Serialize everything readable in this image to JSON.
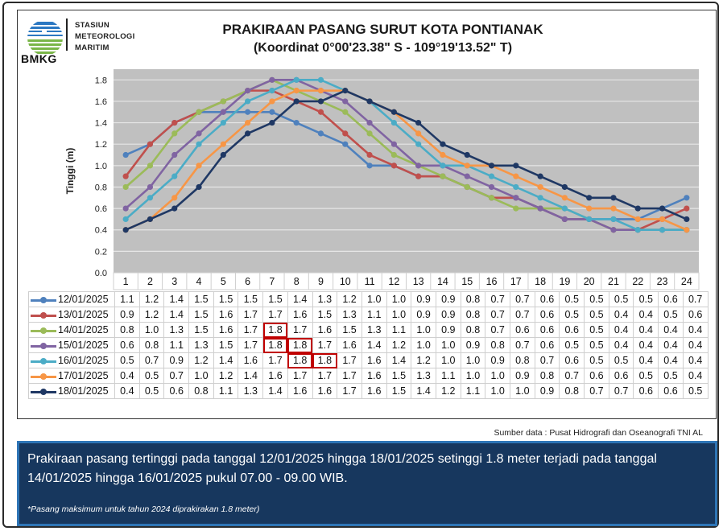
{
  "header": {
    "logo_text": "BMKG",
    "station_lines": [
      "STASIUN",
      "METEOROLOGI",
      "MARITIM"
    ],
    "title": "PRAKIRAAN PASANG SURUT KOTA PONTIANAK",
    "subtitle": "(Koordinat 0°00'23.38\" S - 109°19'13.52\" T)"
  },
  "source": "Sumber data : Pusat Hidrografi dan Oseanografi TNI AL",
  "note": {
    "main": "Prakiraan pasang tertinggi pada tanggal 12/01/2025 hingga 18/01/2025 setinggi 1.8 meter terjadi pada tanggal 14/01/2025 hingga 16/01/2025 pukul 07.00 - 09.00 WIB.",
    "footnote": "*Pasang maksimum untuk tahun 2024 diprakirakan 1.8 meter)"
  },
  "chart_data": {
    "type": "line",
    "title": "PRAKIRAAN PASANG SURUT KOTA PONTIANAK",
    "subtitle": "(Koordinat 0°00'23.38\" S - 109°19'13.52\" T)",
    "xlabel": "",
    "ylabel": "Tinggi (m)",
    "ylim": [
      0,
      1.9
    ],
    "yticks": [
      0.0,
      0.2,
      0.4,
      0.6,
      0.8,
      1.0,
      1.2,
      1.4,
      1.6,
      1.8
    ],
    "grid": true,
    "legend_position": "data-table",
    "x": [
      1,
      2,
      3,
      4,
      5,
      6,
      7,
      8,
      9,
      10,
      11,
      12,
      13,
      14,
      15,
      16,
      17,
      18,
      19,
      20,
      21,
      22,
      23,
      24
    ],
    "series": [
      {
        "name": "12/01/2025",
        "color": "#4f81bd",
        "values": [
          1.1,
          1.2,
          1.4,
          1.5,
          1.5,
          1.5,
          1.5,
          1.4,
          1.3,
          1.2,
          1.0,
          1.0,
          0.9,
          0.9,
          0.8,
          0.7,
          0.7,
          0.6,
          0.5,
          0.5,
          0.5,
          0.5,
          0.6,
          0.7
        ]
      },
      {
        "name": "13/01/2025",
        "color": "#c0504d",
        "values": [
          0.9,
          1.2,
          1.4,
          1.5,
          1.6,
          1.7,
          1.7,
          1.6,
          1.5,
          1.3,
          1.1,
          1.0,
          0.9,
          0.9,
          0.8,
          0.7,
          0.7,
          0.6,
          0.5,
          0.5,
          0.4,
          0.4,
          0.5,
          0.6
        ]
      },
      {
        "name": "14/01/2025",
        "color": "#9bbb59",
        "values": [
          0.8,
          1.0,
          1.3,
          1.5,
          1.6,
          1.7,
          1.8,
          1.7,
          1.6,
          1.5,
          1.3,
          1.1,
          1.0,
          0.9,
          0.8,
          0.7,
          0.6,
          0.6,
          0.6,
          0.5,
          0.4,
          0.4,
          0.4,
          0.4
        ]
      },
      {
        "name": "15/01/2025",
        "color": "#8064a2",
        "values": [
          0.6,
          0.8,
          1.1,
          1.3,
          1.5,
          1.7,
          1.8,
          1.8,
          1.7,
          1.6,
          1.4,
          1.2,
          1.0,
          1.0,
          0.9,
          0.8,
          0.7,
          0.6,
          0.5,
          0.5,
          0.4,
          0.4,
          0.4,
          0.4
        ]
      },
      {
        "name": "16/01/2025",
        "color": "#4bacc6",
        "values": [
          0.5,
          0.7,
          0.9,
          1.2,
          1.4,
          1.6,
          1.7,
          1.8,
          1.8,
          1.7,
          1.6,
          1.4,
          1.2,
          1.0,
          1.0,
          0.9,
          0.8,
          0.7,
          0.6,
          0.5,
          0.5,
          0.4,
          0.4,
          0.4
        ]
      },
      {
        "name": "17/01/2025",
        "color": "#f79646",
        "values": [
          0.4,
          0.5,
          0.7,
          1.0,
          1.2,
          1.4,
          1.6,
          1.7,
          1.7,
          1.7,
          1.6,
          1.5,
          1.3,
          1.1,
          1.0,
          1.0,
          0.9,
          0.8,
          0.7,
          0.6,
          0.6,
          0.5,
          0.5,
          0.4
        ]
      },
      {
        "name": "18/01/2025",
        "color": "#1f3864",
        "values": [
          0.4,
          0.5,
          0.6,
          0.8,
          1.1,
          1.3,
          1.4,
          1.6,
          1.6,
          1.7,
          1.6,
          1.5,
          1.4,
          1.2,
          1.1,
          1.0,
          1.0,
          0.9,
          0.8,
          0.7,
          0.7,
          0.6,
          0.6,
          0.5
        ]
      }
    ],
    "highlighted_cells": [
      {
        "series": "14/01/2025",
        "x": [
          7
        ]
      },
      {
        "series": "15/01/2025",
        "x": [
          7,
          8
        ]
      },
      {
        "series": "16/01/2025",
        "x": [
          8,
          9
        ]
      }
    ],
    "highlight_color": "#c00000",
    "plot_background": "#c0c0c0"
  }
}
